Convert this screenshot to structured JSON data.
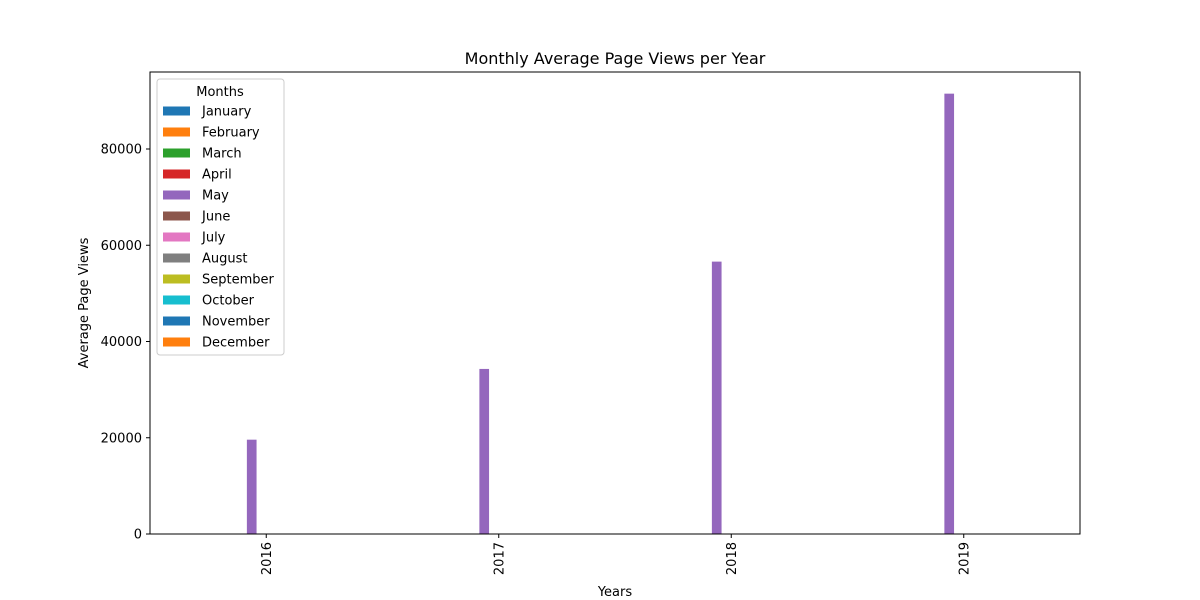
{
  "chart_data": {
    "type": "bar",
    "title": "Monthly Average Page Views per Year",
    "xlabel": "Years",
    "ylabel": "Average Page Views",
    "categories": [
      "2016",
      "2017",
      "2018",
      "2019"
    ],
    "ylim": [
      0,
      96000
    ],
    "yticks": [
      0,
      20000,
      40000,
      60000,
      80000
    ],
    "ytick_labels": [
      "0",
      "20000",
      "40000",
      "60000",
      "80000"
    ],
    "legend": {
      "title": "Months",
      "placement": "top-left"
    },
    "series": [
      {
        "name": "January",
        "color": "#1f77b4",
        "values": [
          0,
          0,
          0,
          0
        ]
      },
      {
        "name": "February",
        "color": "#ff7f0e",
        "values": [
          0,
          0,
          0,
          0
        ]
      },
      {
        "name": "March",
        "color": "#2ca02c",
        "values": [
          0,
          0,
          0,
          0
        ]
      },
      {
        "name": "April",
        "color": "#d62728",
        "values": [
          0,
          0,
          0,
          0
        ]
      },
      {
        "name": "May",
        "color": "#9467bd",
        "values": [
          19600,
          34300,
          56600,
          91500
        ]
      },
      {
        "name": "June",
        "color": "#8c564b",
        "values": [
          0,
          0,
          0,
          0
        ]
      },
      {
        "name": "July",
        "color": "#e377c2",
        "values": [
          0,
          0,
          0,
          0
        ]
      },
      {
        "name": "August",
        "color": "#7f7f7f",
        "values": [
          0,
          0,
          0,
          0
        ]
      },
      {
        "name": "September",
        "color": "#bcbd22",
        "values": [
          0,
          0,
          0,
          0
        ]
      },
      {
        "name": "October",
        "color": "#17becf",
        "values": [
          0,
          0,
          0,
          0
        ]
      },
      {
        "name": "November",
        "color": "#1f77b4",
        "values": [
          0,
          0,
          0,
          0
        ]
      },
      {
        "name": "December",
        "color": "#ff7f0e",
        "values": [
          0,
          0,
          0,
          0
        ]
      }
    ]
  }
}
